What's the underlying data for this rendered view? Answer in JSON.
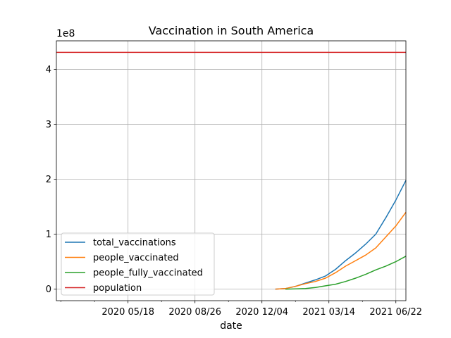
{
  "chart_data": {
    "type": "line",
    "title": "Vaccination in South America",
    "xlabel": "date",
    "ylabel": "",
    "y_offset_label": "1e8",
    "xlim": [
      "2020-02-01",
      "2021-07-07"
    ],
    "ylim": [
      -0.21,
      4.52
    ],
    "y_unit_multiplier": "1e8",
    "grid": true,
    "legend_position": "lower-left",
    "x_major_ticks": [
      {
        "date": "2020-05-18",
        "label": "2020 05/18"
      },
      {
        "date": "2020-08-26",
        "label": "2020 08/26"
      },
      {
        "date": "2020-12-04",
        "label": "2020 12/04"
      },
      {
        "date": "2021-03-14",
        "label": "2021 03/14"
      },
      {
        "date": "2021-06-22",
        "label": "2021 06/22"
      }
    ],
    "x_minor_ticks": [
      "2020-02-08",
      "2020-03-29",
      "2020-07-07",
      "2020-10-15",
      "2021-01-23",
      "2021-05-03"
    ],
    "y_ticks": [
      0,
      1,
      2,
      3,
      4
    ],
    "series": [
      {
        "name": "total_vaccinations",
        "color": "#1f77b4",
        "points": [
          [
            "2020-12-24",
            0.0
          ],
          [
            "2021-01-08",
            0.01
          ],
          [
            "2021-01-23",
            0.05
          ],
          [
            "2021-02-07",
            0.11
          ],
          [
            "2021-02-22",
            0.17
          ],
          [
            "2021-03-09",
            0.24
          ],
          [
            "2021-03-24",
            0.36
          ],
          [
            "2021-04-08",
            0.52
          ],
          [
            "2021-04-23",
            0.66
          ],
          [
            "2021-05-08",
            0.82
          ],
          [
            "2021-05-23",
            1.0
          ],
          [
            "2021-06-07",
            1.3
          ],
          [
            "2021-06-22",
            1.62
          ],
          [
            "2021-07-07",
            1.98
          ]
        ]
      },
      {
        "name": "people_vaccinated",
        "color": "#ff7f0e",
        "points": [
          [
            "2020-12-24",
            0.0
          ],
          [
            "2021-01-08",
            0.01
          ],
          [
            "2021-01-23",
            0.05
          ],
          [
            "2021-02-07",
            0.1
          ],
          [
            "2021-02-22",
            0.14
          ],
          [
            "2021-03-09",
            0.2
          ],
          [
            "2021-03-24",
            0.3
          ],
          [
            "2021-04-08",
            0.42
          ],
          [
            "2021-04-23",
            0.52
          ],
          [
            "2021-05-08",
            0.62
          ],
          [
            "2021-05-23",
            0.75
          ],
          [
            "2021-06-07",
            0.95
          ],
          [
            "2021-06-22",
            1.15
          ],
          [
            "2021-07-07",
            1.4
          ]
        ]
      },
      {
        "name": "people_fully_vaccinated",
        "color": "#2ca02c",
        "points": [
          [
            "2021-01-08",
            0.0
          ],
          [
            "2021-01-23",
            0.005
          ],
          [
            "2021-02-07",
            0.01
          ],
          [
            "2021-02-22",
            0.03
          ],
          [
            "2021-03-09",
            0.06
          ],
          [
            "2021-03-24",
            0.09
          ],
          [
            "2021-04-08",
            0.14
          ],
          [
            "2021-04-23",
            0.2
          ],
          [
            "2021-05-08",
            0.27
          ],
          [
            "2021-05-23",
            0.35
          ],
          [
            "2021-06-07",
            0.42
          ],
          [
            "2021-06-22",
            0.5
          ],
          [
            "2021-07-07",
            0.6
          ]
        ]
      },
      {
        "name": "population",
        "color": "#d62728",
        "points": [
          [
            "2020-02-01",
            4.31
          ],
          [
            "2021-07-07",
            4.31
          ]
        ]
      }
    ]
  }
}
